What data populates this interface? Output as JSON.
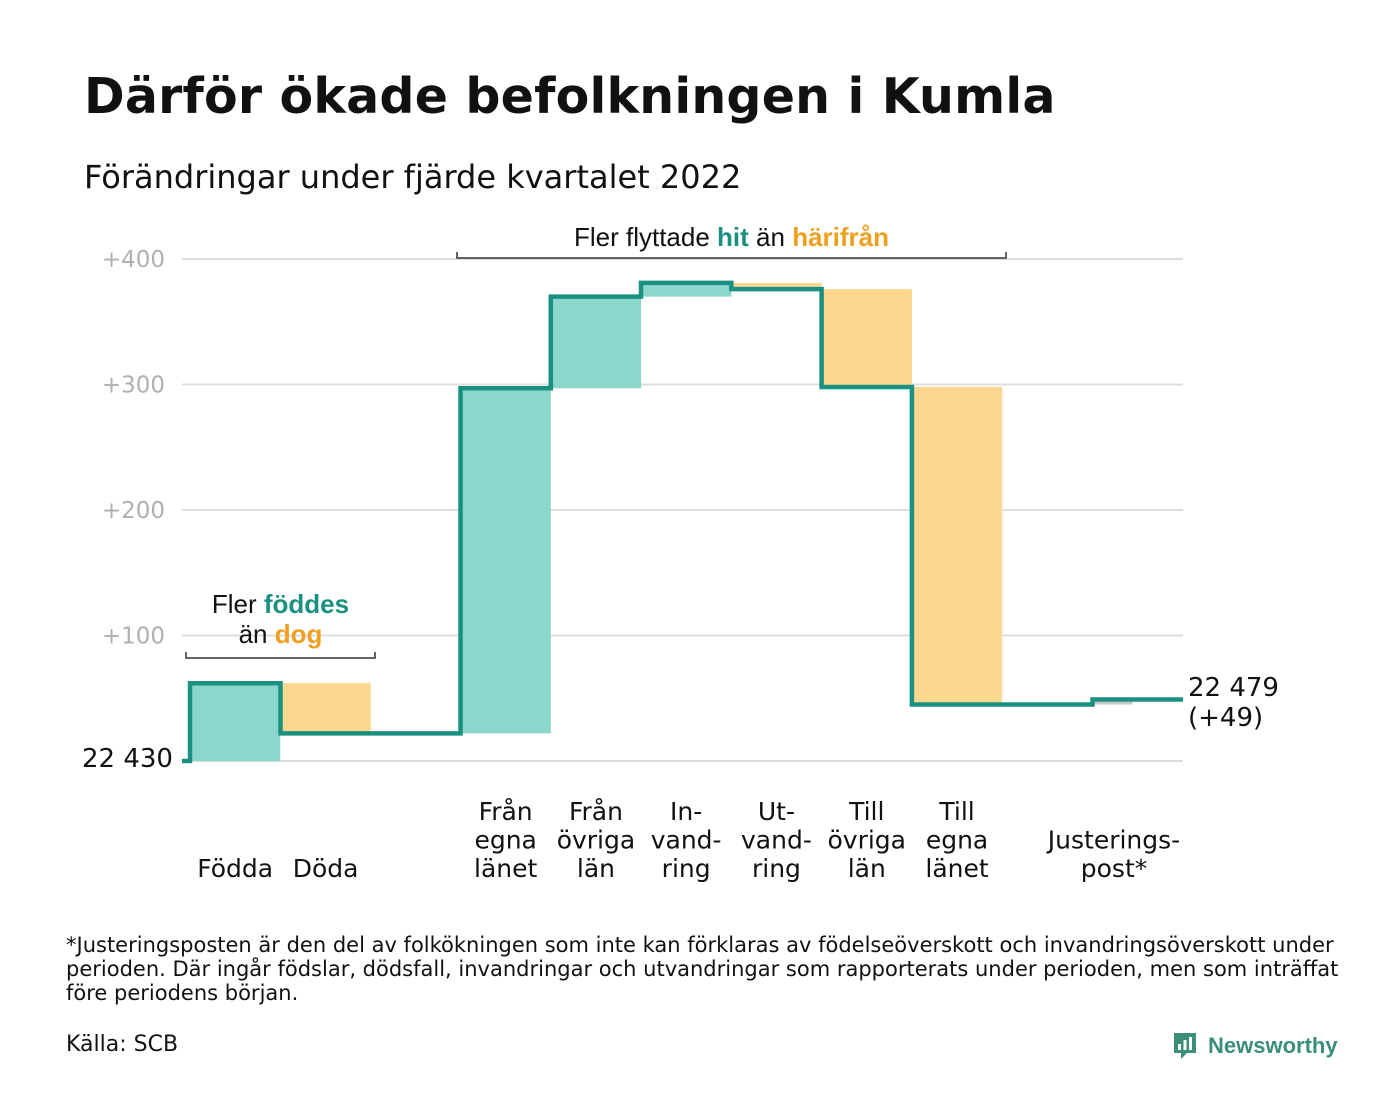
{
  "title": "Därför ökade befolkningen i Kumla",
  "subtitle": "Förändringar under fjärde kvartalet 2022",
  "chart_data": {
    "type": "waterfall",
    "base_value": 22430,
    "base_label": "22 430",
    "end_value": 22479,
    "end_label": "22 479",
    "end_change_label": "(+49)",
    "ylim": [
      0,
      400
    ],
    "yticks": [
      100,
      200,
      300,
      400
    ],
    "ytick_labels": [
      "+100",
      "+200",
      "+300",
      "+400"
    ],
    "grid": true,
    "steps": [
      {
        "label_lines": [
          "Födda"
        ],
        "value": 62,
        "kind": "increase"
      },
      {
        "label_lines": [
          "Döda"
        ],
        "value": -40,
        "kind": "decrease"
      },
      {
        "label_lines": [
          "Från",
          "egna",
          "länet"
        ],
        "value": 275,
        "kind": "increase"
      },
      {
        "label_lines": [
          "Från",
          "övriga",
          "län"
        ],
        "value": 73,
        "kind": "increase"
      },
      {
        "label_lines": [
          "In-",
          "vand-",
          "ring"
        ],
        "value": 11,
        "kind": "increase"
      },
      {
        "label_lines": [
          "Ut-",
          "vand-",
          "ring"
        ],
        "value": -5,
        "kind": "decrease"
      },
      {
        "label_lines": [
          "Till",
          "övriga",
          "län"
        ],
        "value": -78,
        "kind": "decrease"
      },
      {
        "label_lines": [
          "Till",
          "egna",
          "länet"
        ],
        "value": -253,
        "kind": "decrease"
      },
      {
        "label_lines": [
          "Justerings-",
          "post*"
        ],
        "value": 4,
        "kind": "adjustment"
      }
    ],
    "annotations": [
      {
        "id": "births",
        "parts": [
          {
            "text": "Fler ",
            "style": "plain"
          },
          {
            "text": "föddes",
            "style": "increase"
          },
          {
            "text": "än ",
            "style": "plain",
            "newline": true
          },
          {
            "text": "dog",
            "style": "decrease"
          }
        ],
        "spans_steps": [
          0,
          1
        ]
      },
      {
        "id": "migration",
        "parts": [
          {
            "text": "Fler flyttade ",
            "style": "plain"
          },
          {
            "text": "hit",
            "style": "increase"
          },
          {
            "text": " än ",
            "style": "plain"
          },
          {
            "text": "härifrån",
            "style": "decrease"
          }
        ],
        "spans_steps": [
          2,
          7
        ]
      }
    ],
    "colors": {
      "line": "#1a9180",
      "increase_fill": "#8dd6cb",
      "decrease_fill": "#fbd78f",
      "adjustment_fill": "#c8c8c8",
      "increase_text": "#1a9180",
      "decrease_text": "#f0a020",
      "grid": "#dddddd",
      "tick_text": "#b0b0b0"
    }
  },
  "footnote": "*Justeringsposten är den del av folkökningen som inte kan förklaras av födelseöverskott och invandringsöverskott under perioden. Där ingår födslar, dödsfall, invandringar och utvandringar som rapporterats under perioden, men som inträffat före periodens början.",
  "source": "Källa: SCB",
  "brand": {
    "name": "Newsworthy",
    "icon": "newsworthy-logo-icon",
    "color": "#3b8f7a"
  }
}
